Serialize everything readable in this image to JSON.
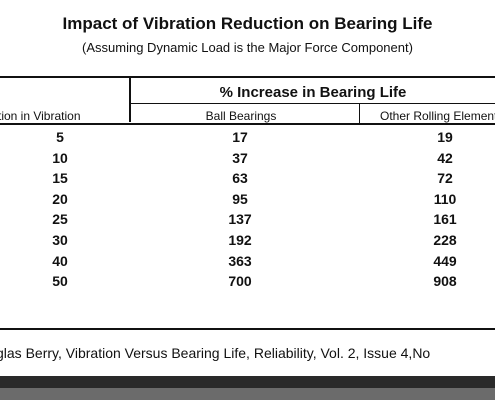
{
  "title": "Impact of Vibration Reduction on Bearing Life",
  "subtitle": "(Assuming Dynamic Load is the Major Force Component)",
  "table": {
    "group_header": "% Increase in Bearing Life",
    "columns": [
      "ction in Vibration",
      "Ball Bearings",
      "Other Rolling Element"
    ],
    "rows": [
      [
        "5",
        "17",
        "19"
      ],
      [
        "10",
        "37",
        "42"
      ],
      [
        "15",
        "63",
        "72"
      ],
      [
        "20",
        "95",
        "110"
      ],
      [
        "25",
        "137",
        "161"
      ],
      [
        "30",
        "192",
        "228"
      ],
      [
        "40",
        "363",
        "449"
      ],
      [
        "50",
        "700",
        "908"
      ]
    ]
  },
  "footnote": "glas Berry, Vibration Versus Bearing Life, Reliability, Vol. 2, Issue 4,No"
}
